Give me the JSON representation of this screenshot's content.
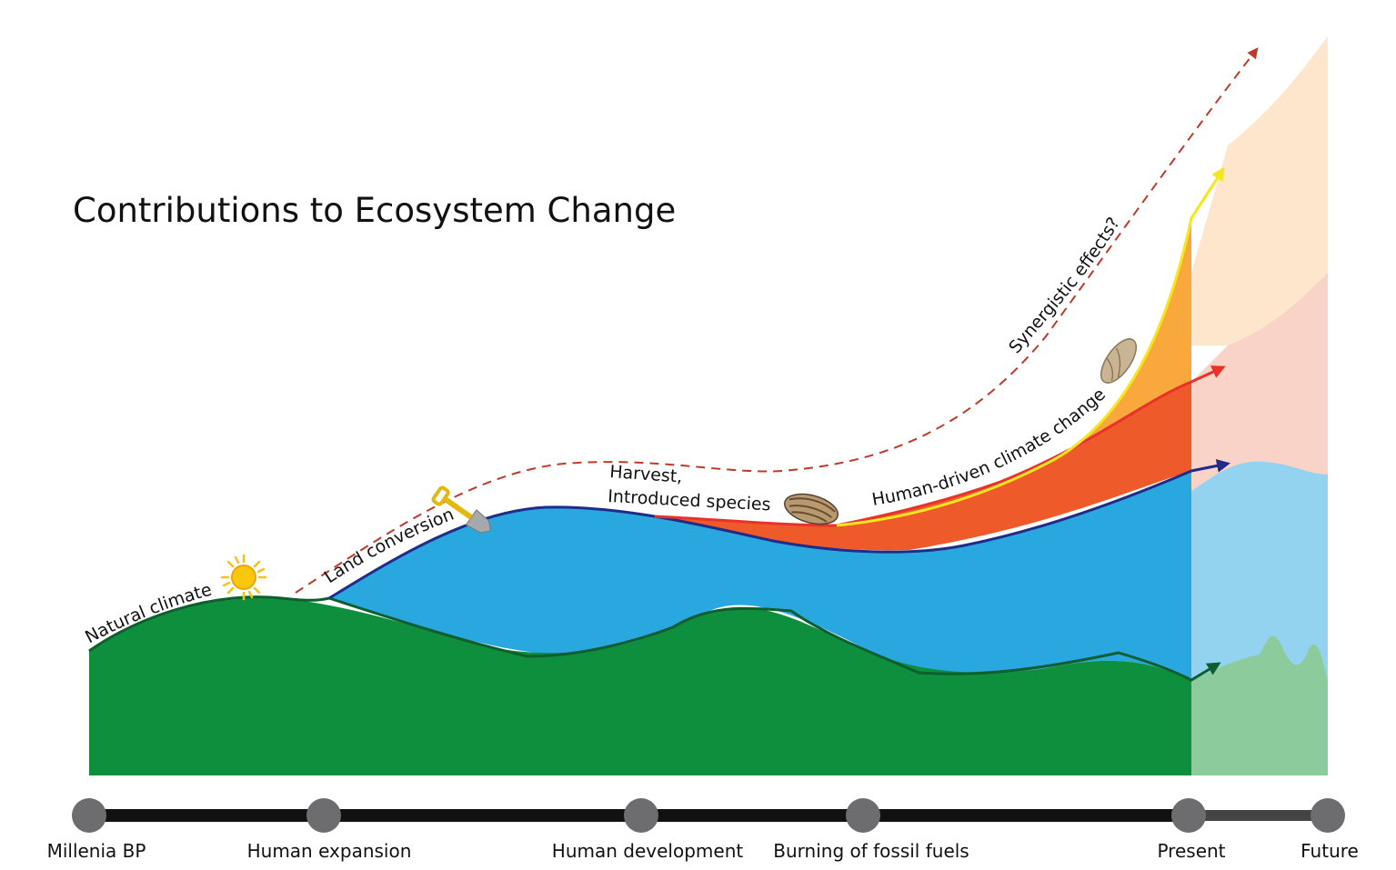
{
  "title": "Contributions to Ecosystem Change",
  "curve_labels": {
    "natural_climate": "Natural climate",
    "land_conversion": "Land conversion",
    "harvest_line1": "Harvest,",
    "harvest_line2": "Introduced species",
    "human_climate": "Human-driven climate change",
    "synergistic": "Synergistic effects?"
  },
  "timeline": [
    "Millenia BP",
    "Human expansion",
    "Human development",
    "Burning of fossil fuels",
    "Present",
    "Future"
  ],
  "colors": {
    "natural_climate": "#0e8f3e",
    "land_conversion": "#29a8e0",
    "harvest": "#ef5a2a",
    "human_climate": "#f9a93c",
    "future_natural": "#8ccc9c",
    "future_land": "#93d3f0",
    "future_harvest": "#f9d3c8",
    "future_climate": "#fde6cc",
    "synergy": "#c0392b",
    "timeline": "#111111",
    "timeline_node": "#6d6d70"
  },
  "icons": [
    "sun-icon",
    "shovel-icon",
    "mussel-icon",
    "snail-shell-icon"
  ]
}
